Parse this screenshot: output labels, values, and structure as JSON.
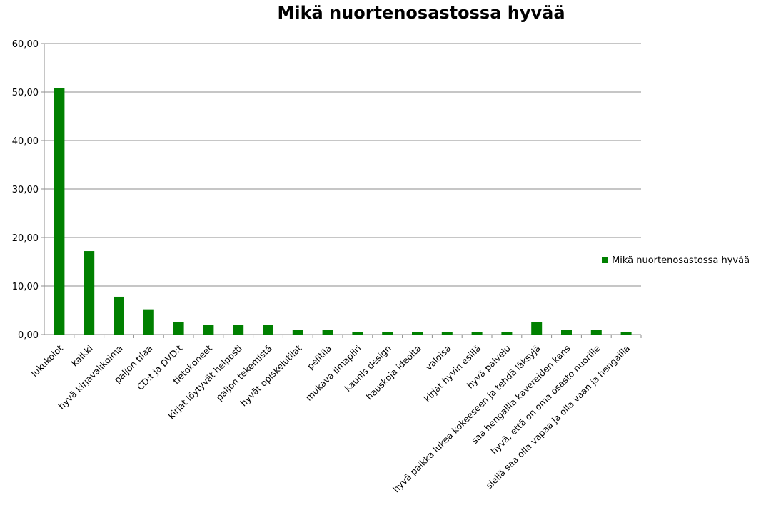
{
  "chart_data": {
    "type": "bar",
    "title": "Mikä nuortenosastossa hyvää",
    "xlabel": "",
    "ylabel": "",
    "ylim": [
      0,
      60
    ],
    "ytick_values": [
      0,
      10,
      20,
      30,
      40,
      50,
      60
    ],
    "ytick_labels": [
      "0,00",
      "10,00",
      "20,00",
      "30,00",
      "40,00",
      "50,00",
      "60,00"
    ],
    "grid": true,
    "legend_position": "right",
    "categories": [
      "lukukolot",
      "kaikki",
      "hyvä kirjavalikoima",
      "paljon tilaa",
      "CD:t ja DVD:t",
      "tietokoneet",
      "kirjat löytyvät helposti",
      "paljon tekemistä",
      "hyvät opiskelutilat",
      "pelitila",
      "mukava ilmapiiri",
      "kaunis design",
      "hauskoja ideoita",
      "valoisa",
      "kirjat hyvin esillä",
      "hyvä palvelu",
      "hyvä paikka lukea kokeeseen ja tehdä läksyjä",
      "saa hengailla kavereiden kans",
      "hyvä, että on oma osasto nuorille",
      "siellä saa olla vapaa ja olla vaan ja hengailla"
    ],
    "series": [
      {
        "name": "Mikä nuortenosastossa hyvää",
        "color": "#008000",
        "values": [
          50.8,
          17.2,
          7.8,
          5.2,
          2.6,
          2.0,
          2.0,
          2.0,
          1.0,
          1.0,
          0.5,
          0.5,
          0.5,
          0.5,
          0.5,
          0.5,
          2.6,
          1.0,
          1.0,
          0.5
        ]
      }
    ]
  }
}
